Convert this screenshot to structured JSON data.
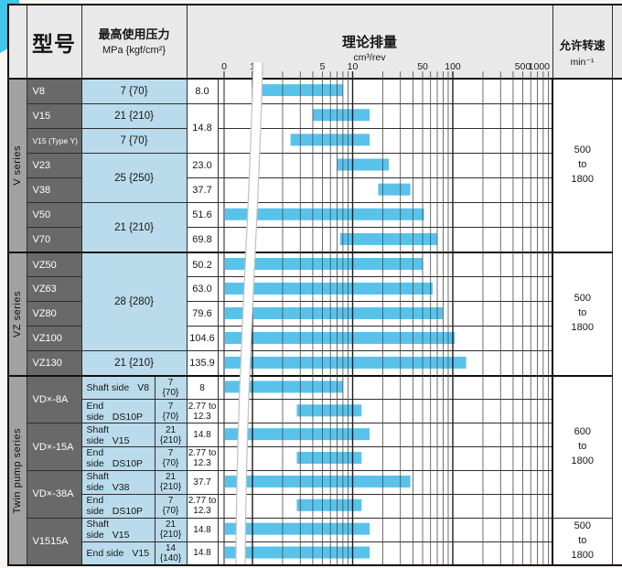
{
  "header": {
    "model_col": "型号",
    "pressure": {
      "line1": "最高使用压力",
      "line2": "MPa {kgf/cm²}"
    },
    "chart": {
      "title": "理论排量",
      "unit": "cm³/rev"
    },
    "speed": {
      "line1": "允许转速",
      "line2": "min⁻¹"
    }
  },
  "sections": [
    {
      "label": "V series",
      "speed": [
        "500",
        "to",
        "1800"
      ],
      "rows": [
        {
          "model": "V8",
          "pressure": "7 {70}",
          "displacement": "8.0"
        },
        {
          "model": "V15",
          "pressure": "21 {210}",
          "displacement": "14.8"
        },
        {
          "model": "V15 (Type Y)",
          "pressure": "7 {70}"
        },
        {
          "model": "V23",
          "pressure": "25 {250}",
          "displacement": "23.0"
        },
        {
          "model": "V38",
          "displacement": "37.7"
        },
        {
          "model": "V50",
          "pressure": "21 {210}",
          "displacement": "51.6"
        },
        {
          "model": "V70",
          "displacement": "69.8"
        }
      ]
    },
    {
      "label": "VZ series",
      "speed": [
        "500",
        "to",
        "1800"
      ],
      "rows": [
        {
          "model": "VZ50",
          "pressure": "28 {280}",
          "displacement": "50.2"
        },
        {
          "model": "VZ63",
          "displacement": "63.0"
        },
        {
          "model": "VZ80",
          "displacement": "79.6"
        },
        {
          "model": "VZ100",
          "displacement": "104.6"
        },
        {
          "model": "VZ130",
          "pressure": "21 {210}",
          "displacement": "135.9"
        }
      ]
    },
    {
      "label": "Twin pump series",
      "speed_groups": [
        [
          "600",
          "to",
          "1800"
        ],
        [
          "500",
          "to",
          "1800"
        ]
      ],
      "rows": [
        {
          "group": "VD×-8A",
          "side": [
            "Shaft side",
            "V8"
          ],
          "pressure": [
            "7",
            "{70}"
          ],
          "displacement": [
            "8"
          ]
        },
        {
          "side": [
            "End side",
            "DS10P"
          ],
          "pressure": [
            "7",
            "{70}"
          ],
          "displacement": [
            "2.77 to",
            "12.3"
          ]
        },
        {
          "group": "VD×-15A",
          "side": [
            "Shaft side",
            "V15"
          ],
          "pressure": [
            "21",
            "{210}"
          ],
          "displacement": [
            "14.8"
          ]
        },
        {
          "side": [
            "End side",
            "DS10P"
          ],
          "pressure": [
            "7",
            "{70}"
          ],
          "displacement": [
            "2.77 to",
            "12.3"
          ]
        },
        {
          "group": "VD×-38A",
          "side": [
            "Shaft side",
            "V38"
          ],
          "pressure": [
            "21",
            "{210}"
          ],
          "displacement": [
            "37.7"
          ]
        },
        {
          "side": [
            "End side",
            "DS10P"
          ],
          "pressure": [
            "7",
            "{70}"
          ],
          "displacement": [
            "2.77 to",
            "12.3"
          ]
        },
        {
          "group": "V1515A",
          "side": [
            "Shaft side",
            "V15"
          ],
          "pressure": [
            "21",
            "{210}"
          ],
          "displacement": [
            "14.8"
          ]
        },
        {
          "side": [
            "End side",
            "V15"
          ],
          "pressure": [
            "14",
            "{140}"
          ],
          "displacement": [
            "14.8"
          ]
        }
      ]
    }
  ],
  "chart_data": {
    "type": "bar",
    "orientation": "horizontal-range",
    "x_scale": "log",
    "title": "理论排量",
    "xlabel": "cm³/rev",
    "x_ticks": [
      "0",
      "1",
      "5",
      "10",
      "50",
      "100",
      "500",
      "1000"
    ],
    "xlim": [
      0,
      1000
    ],
    "grid": "log-minor-and-major",
    "axis_break_between": [
      0,
      1
    ],
    "rows": [
      {
        "label": "V8",
        "range": [
          1.2,
          8.0
        ]
      },
      {
        "label": "V15",
        "range": [
          4.0,
          14.8
        ]
      },
      {
        "label": "V15 (Type Y)",
        "range": [
          2.4,
          14.8
        ]
      },
      {
        "label": "V23",
        "range": [
          7.0,
          23.0
        ]
      },
      {
        "label": "V38",
        "range": [
          18.0,
          37.7
        ]
      },
      {
        "label": "V50",
        "range": [
          0,
          51.6
        ]
      },
      {
        "label": "V70",
        "range": [
          7.5,
          69.8
        ]
      },
      {
        "label": "VZ50",
        "range": [
          0,
          50.2
        ]
      },
      {
        "label": "VZ63",
        "range": [
          0,
          63.0
        ]
      },
      {
        "label": "VZ80",
        "range": [
          0,
          79.6
        ]
      },
      {
        "label": "VZ100",
        "range": [
          0,
          104.6
        ]
      },
      {
        "label": "VZ130",
        "range": [
          0,
          135.9
        ]
      },
      {
        "label": "VD×-8A Shaft side V8",
        "range": [
          0,
          8.0
        ]
      },
      {
        "label": "VD×-8A End side DS10P",
        "range": [
          2.77,
          12.3
        ]
      },
      {
        "label": "VD×-15A Shaft side V15",
        "range": [
          0,
          14.8
        ]
      },
      {
        "label": "VD×-15A End side DS10P",
        "range": [
          2.77,
          12.3
        ]
      },
      {
        "label": "VD×-38A Shaft side V38",
        "range": [
          0,
          37.7
        ]
      },
      {
        "label": "VD×-38A End side DS10P",
        "range": [
          2.77,
          12.3
        ]
      },
      {
        "label": "V1515A Shaft side V15",
        "range": [
          0,
          14.8
        ]
      },
      {
        "label": "V1515A End side V15",
        "range": [
          0,
          14.8
        ]
      }
    ]
  },
  "colors": {
    "bar": "#59c2ea",
    "accent_corner": "#3fc7e9",
    "cell_blue": "#badbeb",
    "model_gray": "#696969",
    "series_gray": "#a2a2a2",
    "header_gray": "#e9e9e9",
    "grid_major": "#1c1c1c",
    "grid_minor": "#4a4a4a",
    "break_edge": "#c2c2c2"
  }
}
